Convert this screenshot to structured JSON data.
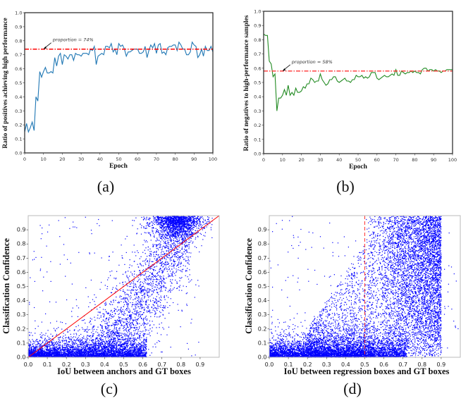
{
  "chart_data": [
    {
      "type": "line",
      "panel_label": "(a)",
      "xlabel": "Epoch",
      "ylabel": "Ratio of positives achieving high performance",
      "xlim": [
        0,
        100
      ],
      "ylim": [
        0,
        1.0
      ],
      "xticks": [
        "0",
        "10",
        "20",
        "30",
        "40",
        "50",
        "60",
        "70",
        "80",
        "90",
        "100"
      ],
      "yticks": [
        "0.0",
        "0.1",
        "0.2",
        "0.3",
        "0.4",
        "0.5",
        "0.6",
        "0.7",
        "0.8",
        "0.9",
        "1.0"
      ],
      "series": [
        {
          "name": "ratio",
          "color": "#1f77b4",
          "values": [
            0.15,
            0.21,
            0.15,
            0.18,
            0.22,
            0.16,
            0.4,
            0.37,
            0.58,
            0.54,
            0.58,
            0.61,
            0.57,
            0.57,
            0.58,
            0.57,
            0.68,
            0.62,
            0.69,
            0.71,
            0.63,
            0.7,
            0.69,
            0.67,
            0.7,
            0.7,
            0.66,
            0.71,
            0.7,
            0.7,
            0.69,
            0.71,
            0.71,
            0.71,
            0.7,
            0.74,
            0.73,
            0.76,
            0.63,
            0.69,
            0.7,
            0.71,
            0.7,
            0.76,
            0.76,
            0.75,
            0.78,
            0.72,
            0.74,
            0.7,
            0.78,
            0.76,
            0.77,
            0.74,
            0.69,
            0.72,
            0.72,
            0.73,
            0.74,
            0.74,
            0.74,
            0.71,
            0.71,
            0.72,
            0.76,
            0.68,
            0.73,
            0.77,
            0.75,
            0.78,
            0.71,
            0.77,
            0.78,
            0.71,
            0.72,
            0.7,
            0.75,
            0.76,
            0.76,
            0.77,
            0.77,
            0.73,
            0.79,
            0.77,
            0.74,
            0.74,
            0.7,
            0.7,
            0.72,
            0.79,
            0.77,
            0.76,
            0.68,
            0.7,
            0.74,
            0.69,
            0.76,
            0.73,
            0.73,
            0.76,
            0.72
          ]
        }
      ],
      "reference_line": {
        "y": 0.74,
        "color": "#ff0000",
        "style": "dash-dot"
      },
      "annotation": {
        "text": "proportion = 74%",
        "x": 10,
        "y": 0.74
      }
    },
    {
      "type": "line",
      "panel_label": "(b)",
      "xlabel": "Epoch",
      "ylabel": "Ratio of negatives to high-performance samples",
      "xlim": [
        0,
        100
      ],
      "ylim": [
        0,
        1.0
      ],
      "xticks": [
        "0",
        "10",
        "20",
        "30",
        "40",
        "50",
        "60",
        "70",
        "80",
        "90",
        "100"
      ],
      "yticks": [
        "0.0",
        "0.1",
        "0.2",
        "0.3",
        "0.4",
        "0.5",
        "0.6",
        "0.7",
        "0.8",
        "0.9",
        "1.0"
      ],
      "series": [
        {
          "name": "ratio",
          "color": "#228b22",
          "values": [
            0.84,
            0.83,
            0.83,
            0.65,
            0.63,
            0.54,
            0.56,
            0.3,
            0.39,
            0.39,
            0.41,
            0.45,
            0.41,
            0.48,
            0.41,
            0.43,
            0.41,
            0.46,
            0.43,
            0.43,
            0.44,
            0.47,
            0.46,
            0.49,
            0.49,
            0.53,
            0.52,
            0.5,
            0.51,
            0.51,
            0.56,
            0.52,
            0.5,
            0.48,
            0.49,
            0.52,
            0.52,
            0.54,
            0.54,
            0.51,
            0.5,
            0.51,
            0.52,
            0.53,
            0.51,
            0.51,
            0.5,
            0.52,
            0.52,
            0.55,
            0.54,
            0.54,
            0.55,
            0.53,
            0.54,
            0.53,
            0.54,
            0.57,
            0.57,
            0.57,
            0.53,
            0.52,
            0.53,
            0.54,
            0.55,
            0.54,
            0.54,
            0.55,
            0.56,
            0.55,
            0.59,
            0.55,
            0.55,
            0.58,
            0.57,
            0.56,
            0.57,
            0.57,
            0.58,
            0.57,
            0.58,
            0.57,
            0.57,
            0.56,
            0.59,
            0.6,
            0.6,
            0.58,
            0.59,
            0.59,
            0.58,
            0.59,
            0.58,
            0.58,
            0.57,
            0.58,
            0.58,
            0.59,
            0.59,
            0.59,
            0.59
          ]
        }
      ],
      "reference_line": {
        "y": 0.58,
        "color": "#ff3333",
        "style": "dash-dot"
      },
      "annotation": {
        "text": "proportion = 58%",
        "x": 10,
        "y": 0.58
      }
    },
    {
      "type": "scatter",
      "panel_label": "(c)",
      "xlabel": "IoU between anchors and GT boxes",
      "ylabel": "Classification Confidence",
      "xlim": [
        0,
        1.0
      ],
      "ylim": [
        0,
        1.0
      ],
      "xticks": [
        "0.0",
        "0.1",
        "0.2",
        "0.3",
        "0.4",
        "0.5",
        "0.6",
        "0.7",
        "0.8",
        "0.9"
      ],
      "yticks": [
        "0.0",
        "0.1",
        "0.2",
        "0.3",
        "0.4",
        "0.5",
        "0.6",
        "0.7",
        "0.8",
        "0.9"
      ],
      "point_color": "#0000ff",
      "clusters": [
        {
          "kind": "low-band",
          "n": 4200,
          "x_range": [
            0.0,
            0.62
          ],
          "y_scale": 0.035
        },
        {
          "kind": "high-cluster",
          "n": 1500,
          "x_mean": 0.78,
          "x_sd": 0.07,
          "y_range": [
            0.85,
            1.0
          ]
        },
        {
          "kind": "diagonal-band",
          "n": 2600,
          "x_range": [
            0.25,
            0.85
          ],
          "slope": 1.9,
          "intercept": -0.7,
          "y_sd": 0.17
        },
        {
          "kind": "sparse",
          "n": 220,
          "x_range": [
            0.0,
            0.9
          ],
          "y_range": [
            0.0,
            1.0
          ]
        }
      ],
      "reference_line": {
        "type": "diagonal",
        "from": [
          0,
          0
        ],
        "to": [
          1,
          1
        ],
        "color": "#ff0000",
        "style": "solid"
      }
    },
    {
      "type": "scatter",
      "panel_label": "(d)",
      "xlabel": "IoU between regression boxes and GT boxes",
      "ylabel": "Classification Confidence",
      "xlim": [
        0,
        1.0
      ],
      "ylim": [
        0,
        1.0
      ],
      "xticks": [
        "0.0",
        "0.1",
        "0.2",
        "0.3",
        "0.4",
        "0.5",
        "0.6",
        "0.7",
        "0.8",
        "0.9"
      ],
      "yticks": [
        "0.0",
        "0.1",
        "0.2",
        "0.3",
        "0.4",
        "0.5",
        "0.6",
        "0.7",
        "0.8",
        "0.9"
      ],
      "point_color": "#0000ff",
      "clusters": [
        {
          "kind": "low-band",
          "n": 4500,
          "x_range": [
            0.0,
            0.72
          ],
          "y_scale": 0.04
        },
        {
          "kind": "high-block",
          "n": 5000,
          "x_range": [
            0.5,
            0.9
          ],
          "y_range": [
            0.0,
            1.0
          ]
        },
        {
          "kind": "mid-rise",
          "n": 1800,
          "x_range": [
            0.2,
            0.55
          ],
          "y_range": [
            0.0,
            0.9
          ]
        },
        {
          "kind": "sparse",
          "n": 200,
          "x_range": [
            0.0,
            1.0
          ],
          "y_range": [
            0.0,
            1.0
          ]
        }
      ],
      "reference_line": {
        "type": "vertical",
        "x": 0.5,
        "color": "#ff3333",
        "style": "dashed"
      }
    }
  ]
}
